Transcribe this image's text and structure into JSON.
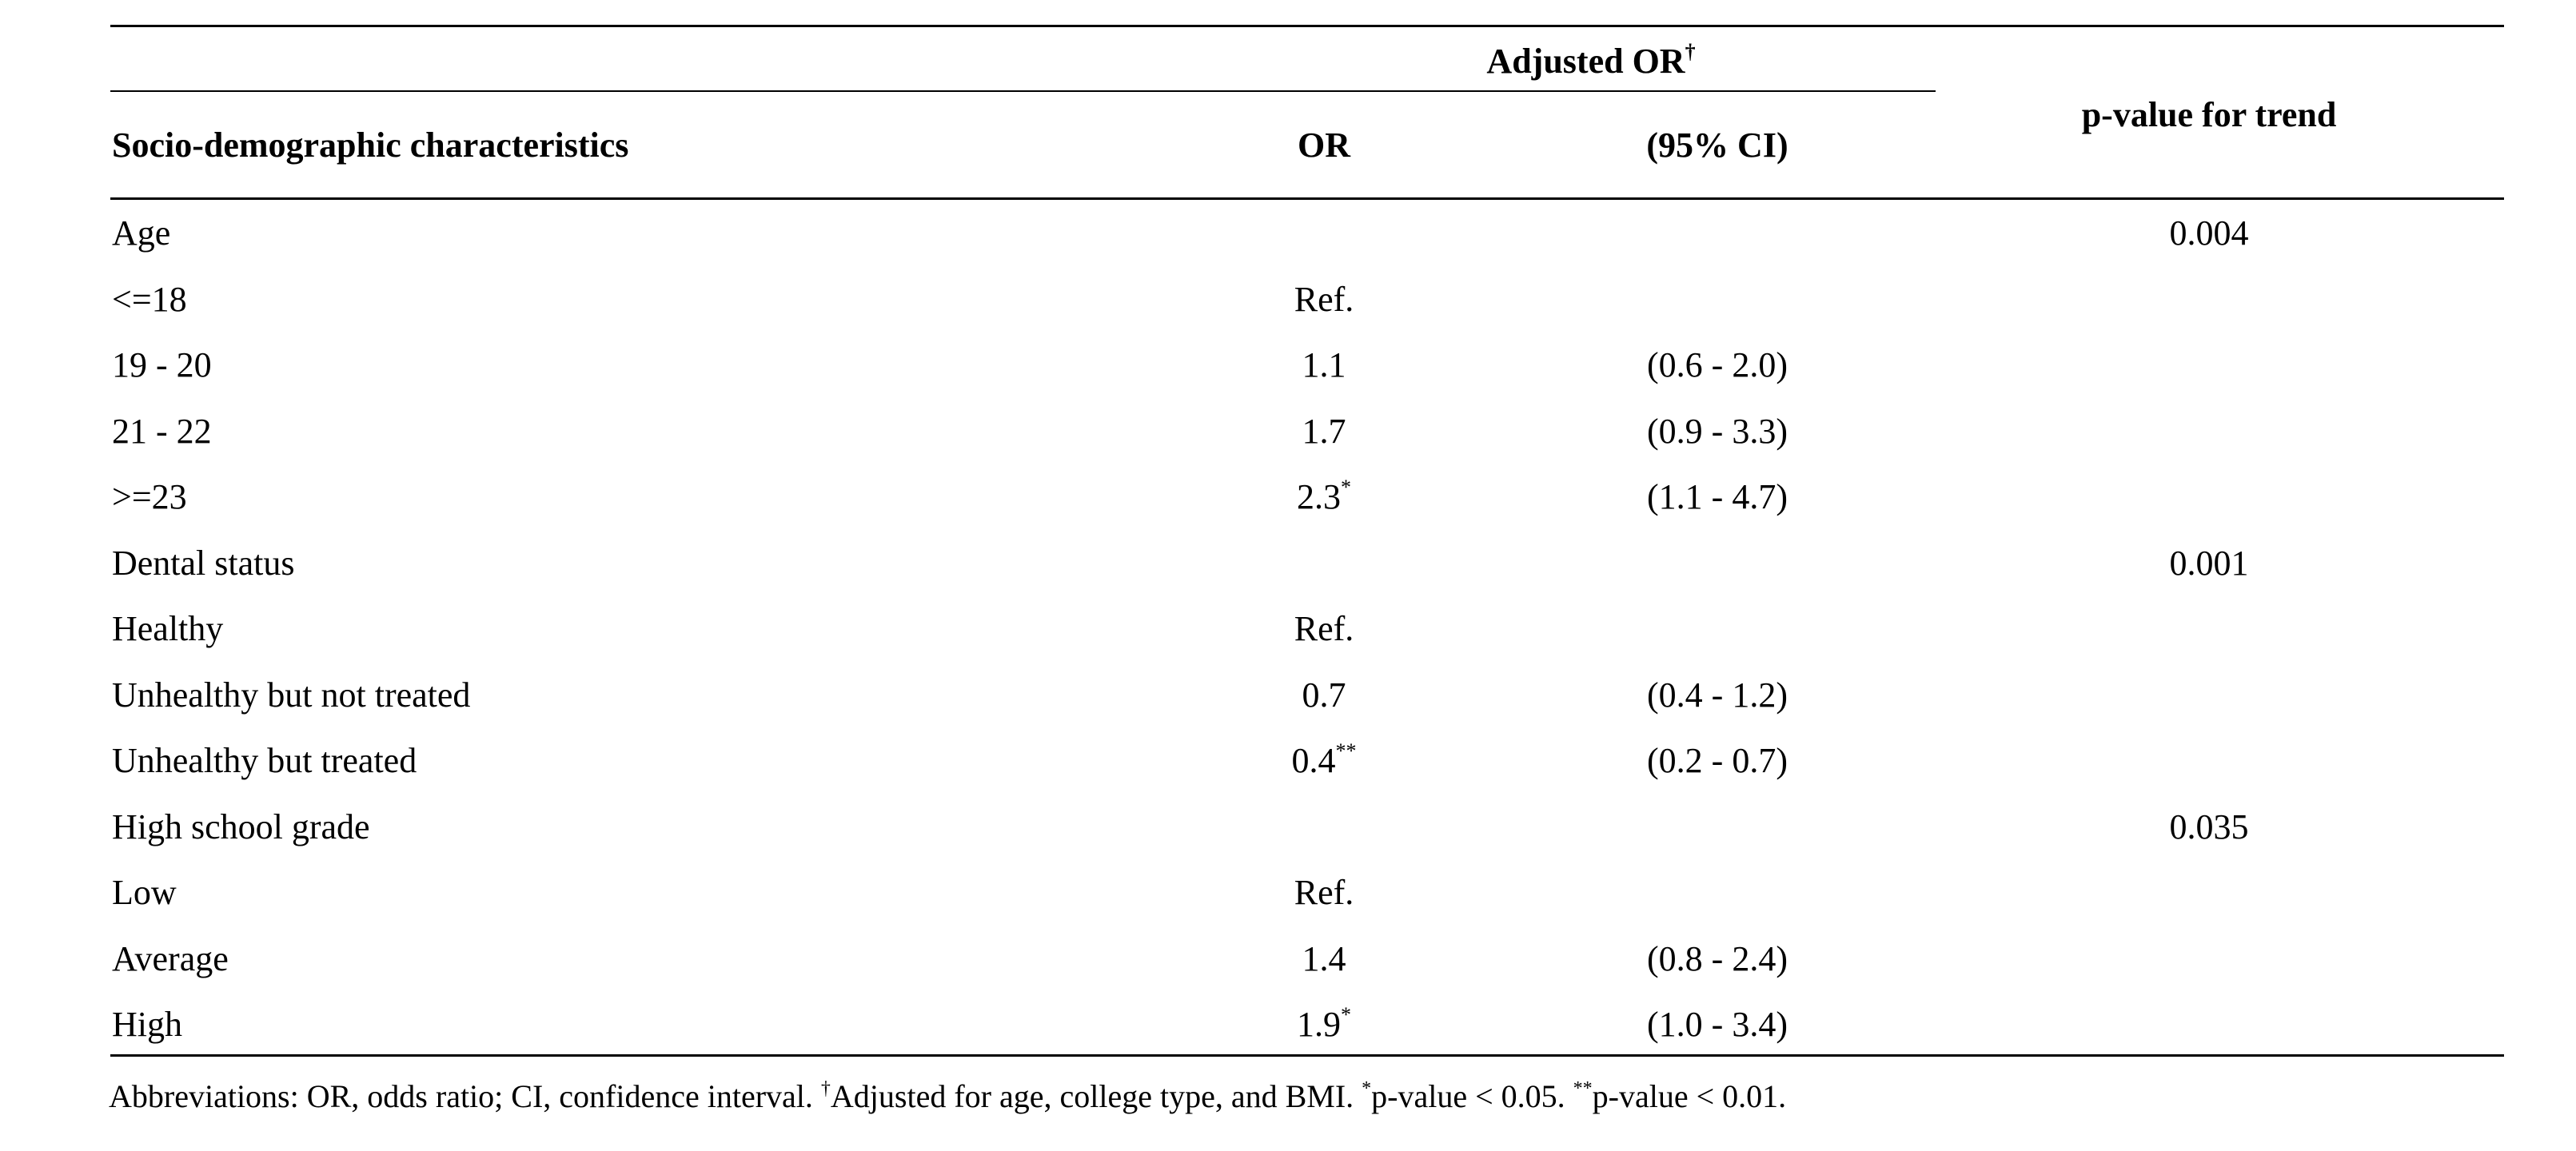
{
  "table": {
    "header": {
      "adjusted_or": "Adjusted OR",
      "adjusted_or_mark": "†",
      "characteristics": "Socio-demographic characteristics",
      "or": "OR",
      "ci": "(95% CI)",
      "p_trend": "p-value for trend"
    },
    "rows": [
      {
        "label": "Age",
        "or": "",
        "or_mark": "",
        "ci": "",
        "p": "0.004"
      },
      {
        "label": "<=18",
        "or": "Ref.",
        "or_mark": "",
        "ci": "",
        "p": ""
      },
      {
        "label": "19 - 20",
        "or": "1.1",
        "or_mark": "",
        "ci": "(0.6 - 2.0)",
        "p": ""
      },
      {
        "label": "21 - 22",
        "or": "1.7",
        "or_mark": "",
        "ci": "(0.9 - 3.3)",
        "p": ""
      },
      {
        "label": ">=23",
        "or": "2.3",
        "or_mark": "*",
        "ci": "(1.1 - 4.7)",
        "p": ""
      },
      {
        "label": "Dental status",
        "or": "",
        "or_mark": "",
        "ci": "",
        "p": "0.001"
      },
      {
        "label": "Healthy",
        "or": "Ref.",
        "or_mark": "",
        "ci": "",
        "p": ""
      },
      {
        "label": "Unhealthy but not treated",
        "or": "0.7",
        "or_mark": "",
        "ci": "(0.4 - 1.2)",
        "p": ""
      },
      {
        "label": "Unhealthy but treated",
        "or": "0.4",
        "or_mark": "**",
        "ci": "(0.2 - 0.7)",
        "p": ""
      },
      {
        "label": "High school grade",
        "or": "",
        "or_mark": "",
        "ci": "",
        "p": "0.035"
      },
      {
        "label": "Low",
        "or": "Ref.",
        "or_mark": "",
        "ci": "",
        "p": ""
      },
      {
        "label": "Average",
        "or": "1.4",
        "or_mark": "",
        "ci": "(0.8 - 2.4)",
        "p": ""
      },
      {
        "label": "High",
        "or": "1.9",
        "or_mark": "*",
        "ci": "(1.0 - 3.4)",
        "p": ""
      }
    ],
    "footnote": {
      "part1": "Abbreviations: OR, odds ratio; CI, confidence interval. ",
      "mark1": "†",
      "part2": "Adjusted for age, college type, and BMI. ",
      "mark2": "*",
      "part3": "p-value < 0.05. ",
      "mark3": "**",
      "part4": "p-value < 0.01."
    }
  }
}
